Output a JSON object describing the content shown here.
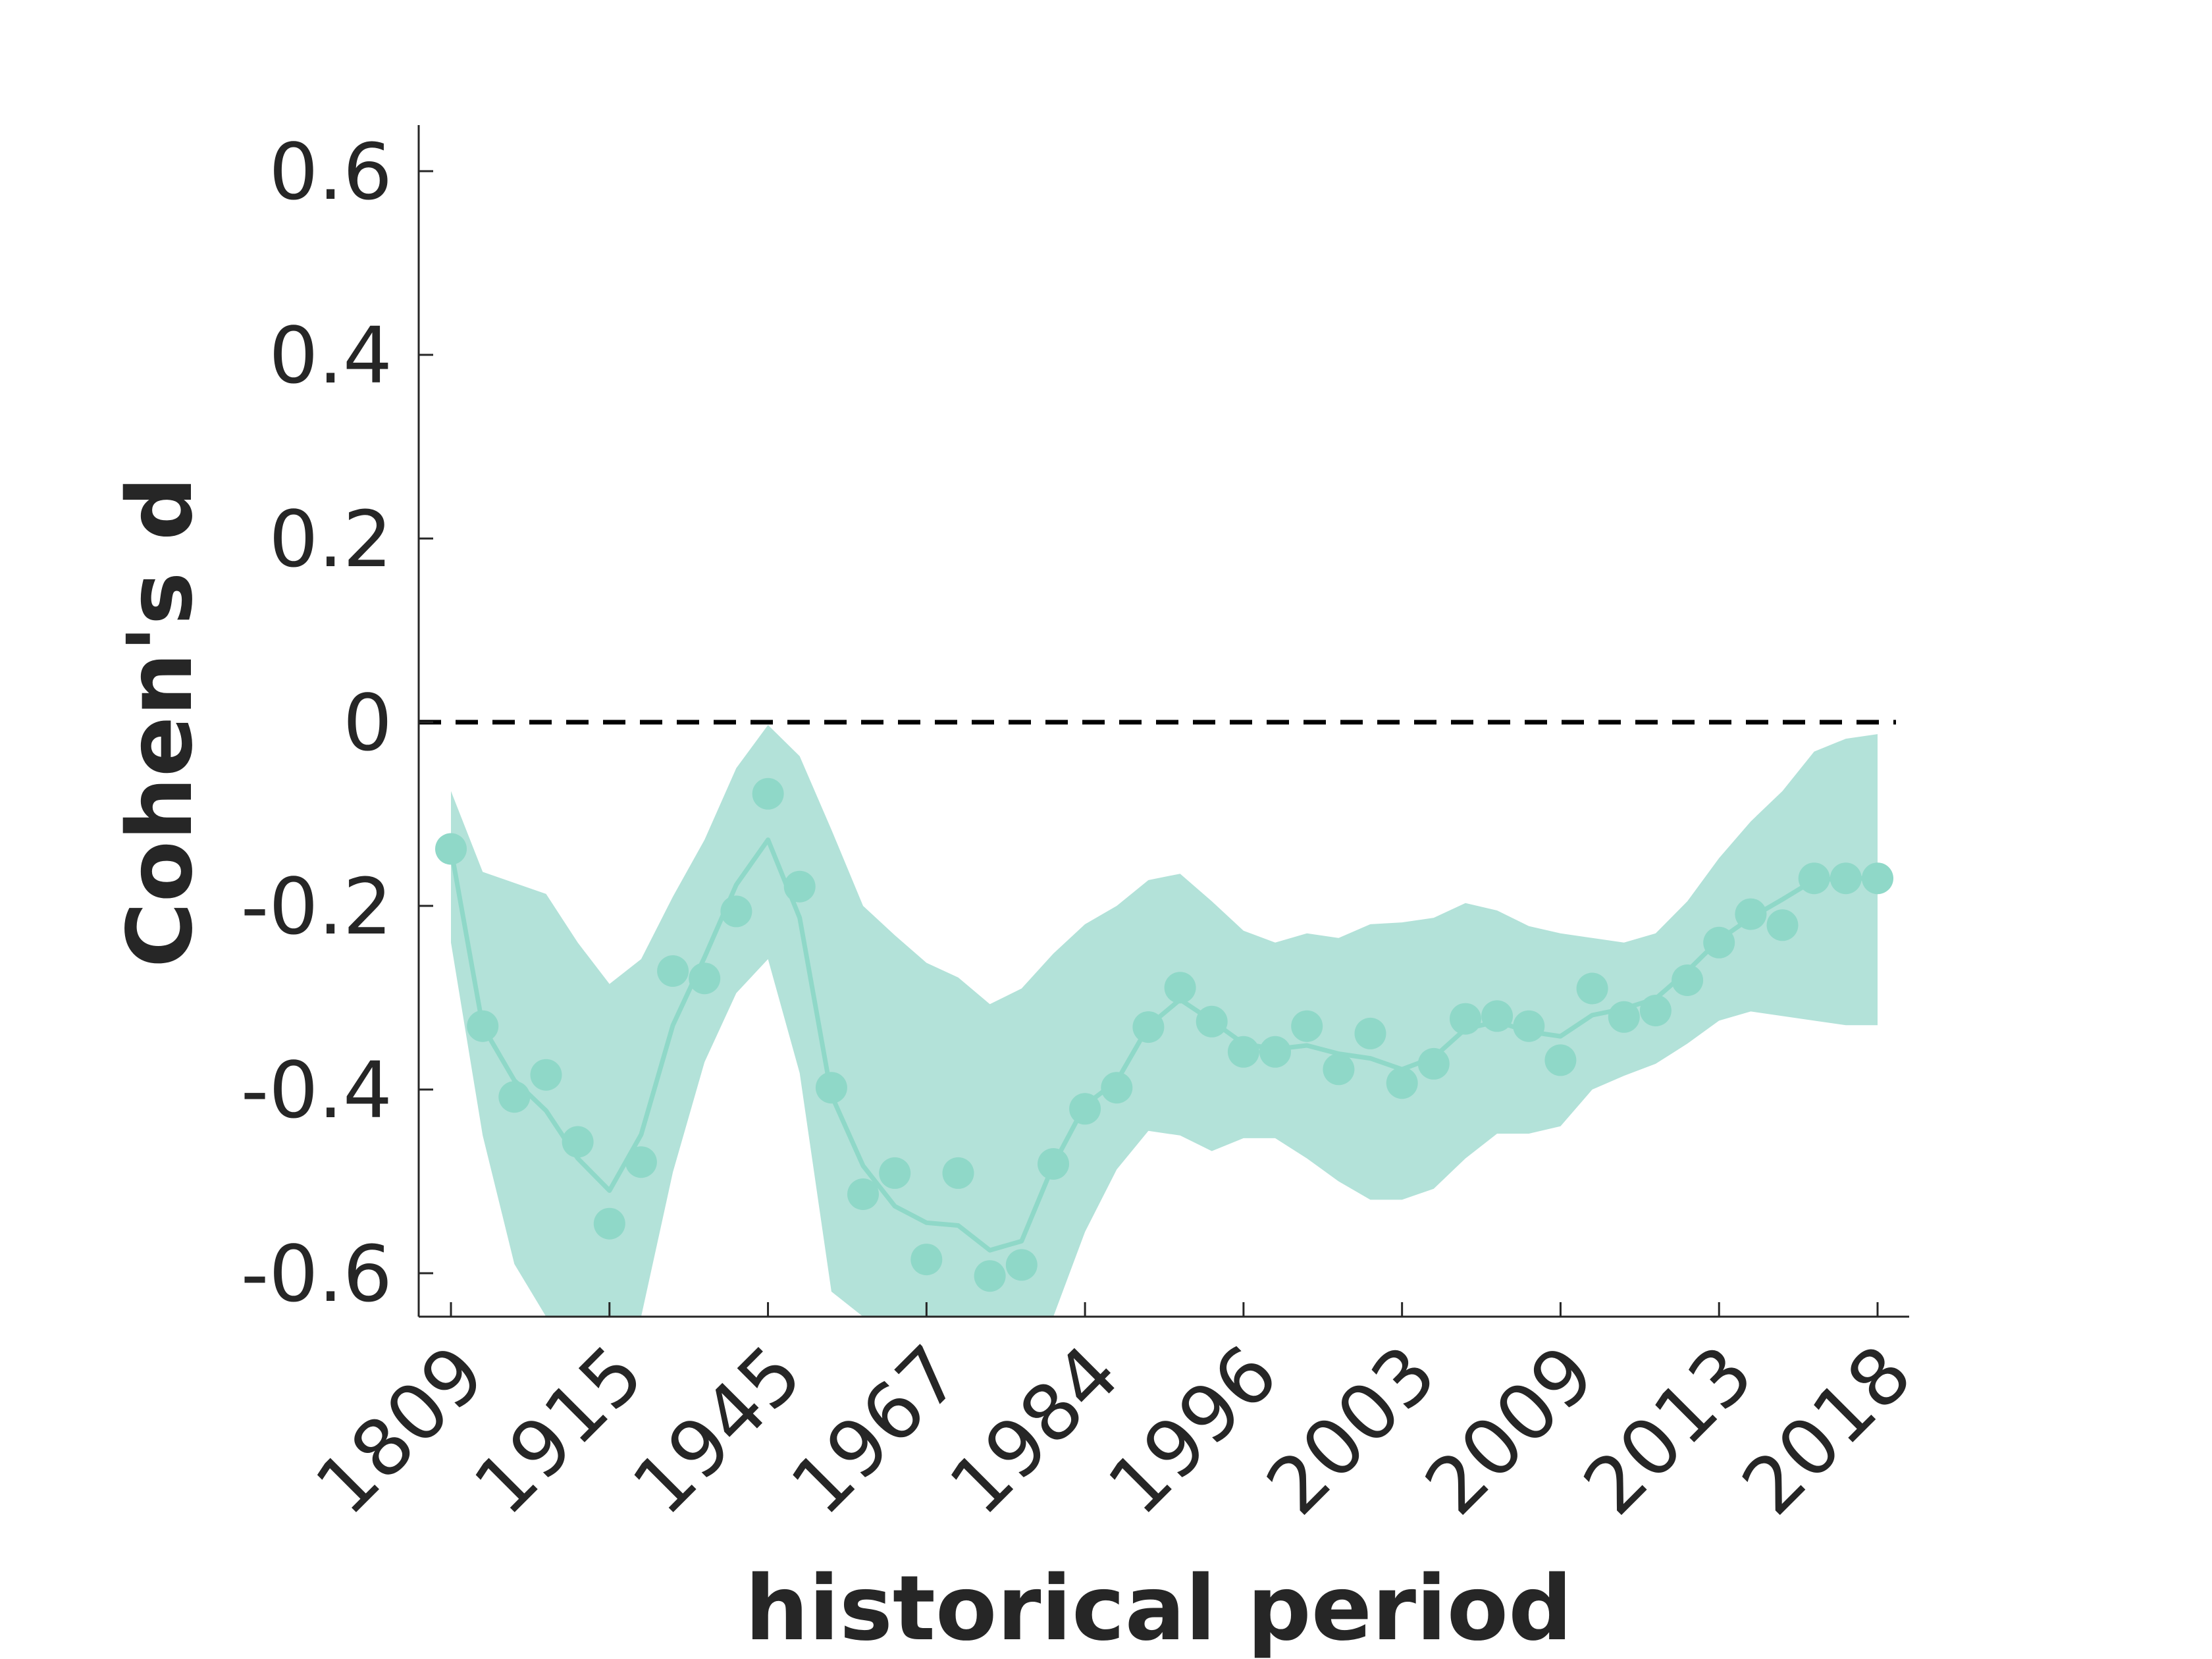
{
  "chart_data": {
    "type": "line",
    "title": "",
    "xlabel": "historical period",
    "ylabel": "Cohen's d",
    "ylim": [
      -0.65,
      0.65
    ],
    "yticks": [
      0.6,
      0.4,
      0.2,
      0,
      -0.2,
      -0.4,
      -0.6
    ],
    "ytick_labels": [
      "0.6",
      "0.4",
      "0.2",
      "0",
      "-0.2",
      "-0.4",
      "-0.6"
    ],
    "xtick_labels": [
      "1809",
      "1915",
      "1945",
      "1967",
      "1984",
      "1996",
      "2003",
      "2009",
      "2013",
      "2018"
    ],
    "xtick_every": 5,
    "reference_line": {
      "y": 0,
      "style": "dashed"
    },
    "colors": {
      "series": "#8fd8c8",
      "band": "#b3e2d9",
      "axis": "#262626",
      "reference": "#000000"
    },
    "grid": false,
    "legend": "none",
    "series": [
      {
        "points": [
          -0.138,
          -0.331,
          -0.408,
          -0.384,
          -0.457,
          -0.546,
          -0.479,
          -0.271,
          -0.279,
          -0.206,
          -0.078,
          -0.179,
          -0.398,
          -0.514,
          -0.491,
          -0.585,
          -0.491,
          -0.603,
          -0.591,
          -0.481,
          -0.421,
          -0.398,
          -0.332,
          -0.289,
          -0.326,
          -0.359,
          -0.359,
          -0.331,
          -0.378,
          -0.339,
          -0.393,
          -0.372,
          -0.323,
          -0.32,
          -0.331,
          -0.368,
          -0.29,
          -0.321,
          -0.314,
          -0.281,
          -0.24,
          -0.209,
          -0.221,
          -0.17,
          -0.17,
          -0.17
        ],
        "smooth": [
          -0.138,
          -0.331,
          -0.39,
          -0.423,
          -0.475,
          -0.51,
          -0.449,
          -0.33,
          -0.256,
          -0.177,
          -0.128,
          -0.213,
          -0.406,
          -0.483,
          -0.527,
          -0.545,
          -0.548,
          -0.575,
          -0.565,
          -0.482,
          -0.417,
          -0.391,
          -0.331,
          -0.302,
          -0.325,
          -0.35,
          -0.356,
          -0.352,
          -0.361,
          -0.366,
          -0.378,
          -0.365,
          -0.334,
          -0.326,
          -0.337,
          -0.342,
          -0.319,
          -0.312,
          -0.301,
          -0.271,
          -0.237,
          -0.213,
          -0.193,
          -0.172,
          -0.17,
          -0.17
        ],
        "ci_upper": [
          -0.075,
          -0.163,
          -0.175,
          -0.187,
          -0.24,
          -0.285,
          -0.258,
          -0.19,
          -0.128,
          -0.05,
          -0.003,
          -0.037,
          -0.117,
          -0.2,
          -0.232,
          -0.262,
          -0.278,
          -0.307,
          -0.29,
          -0.252,
          -0.22,
          -0.2,
          -0.172,
          -0.165,
          -0.195,
          -0.227,
          -0.24,
          -0.23,
          -0.235,
          -0.22,
          -0.218,
          -0.213,
          -0.197,
          -0.205,
          -0.222,
          -0.23,
          -0.235,
          -0.24,
          -0.23,
          -0.195,
          -0.148,
          -0.108,
          -0.075,
          -0.032,
          -0.018,
          -0.013
        ],
        "ci_lower": [
          -0.24,
          -0.45,
          -0.59,
          -0.65,
          -0.7,
          -0.7,
          -0.7,
          -0.49,
          -0.37,
          -0.295,
          -0.258,
          -0.382,
          -0.62,
          -0.7,
          -0.7,
          -0.7,
          -0.7,
          -0.7,
          -0.7,
          -0.66,
          -0.555,
          -0.487,
          -0.445,
          -0.45,
          -0.467,
          -0.453,
          -0.453,
          -0.475,
          -0.5,
          -0.52,
          -0.52,
          -0.508,
          -0.475,
          -0.448,
          -0.448,
          -0.44,
          -0.4,
          -0.385,
          -0.372,
          -0.35,
          -0.325,
          -0.315,
          -0.32,
          -0.325,
          -0.33,
          -0.33
        ]
      }
    ]
  }
}
